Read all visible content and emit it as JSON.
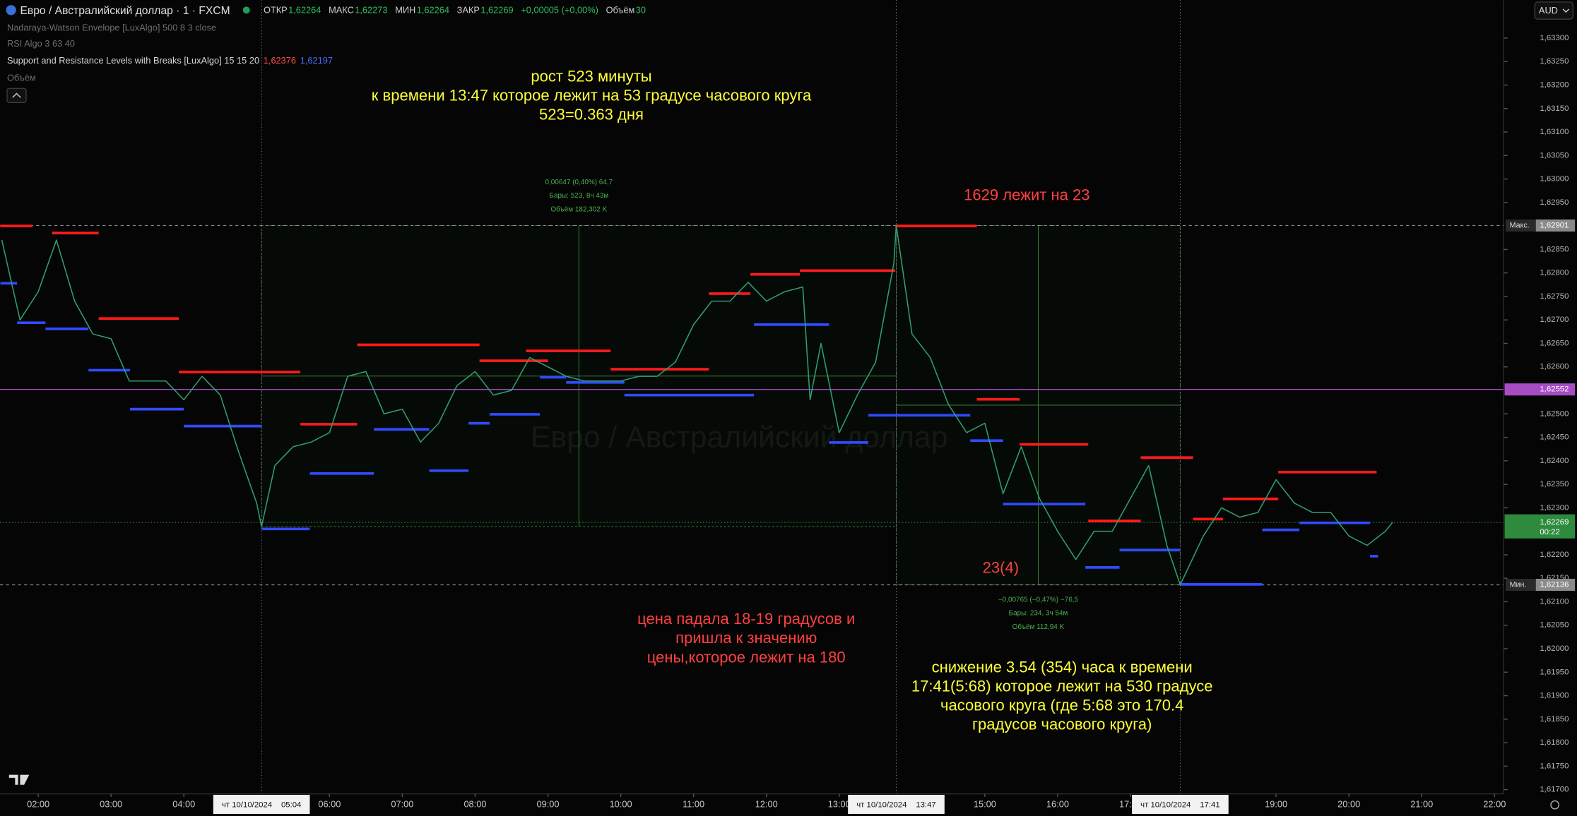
{
  "header": {
    "title": "Евро / Австралийский доллар · 1 · FXCM",
    "ohlc": [
      {
        "key": "ОТКР",
        "value": "1,62264"
      },
      {
        "key": "МАКС",
        "value": "1,62273"
      },
      {
        "key": "МИН",
        "value": "1,62264"
      },
      {
        "key": "ЗАКР",
        "value": "1,62269"
      }
    ],
    "change": "+0,00005 (+0,00%)",
    "volume_key": "Объём",
    "volume": "30",
    "currency": "AUD"
  },
  "indicators": [
    {
      "name": "Nadaraya-Watson Envelope [LuxAlgo] 500 8 3 close"
    },
    {
      "name": "RSI Algo 3 63 40"
    },
    {
      "name": "Support and Resistance Levels with Breaks [LuxAlgo] 15 15 20",
      "values": [
        "1,62376",
        "1,62197"
      ]
    },
    {
      "name": "Объём"
    }
  ],
  "watermark": "Евро / Австралийский доллар",
  "chart_data": {
    "type": "line",
    "color": "#2f9e6e",
    "x": [
      1.5,
      1.75,
      2,
      2.25,
      2.5,
      2.75,
      3,
      3.25,
      3.5,
      3.75,
      4,
      4.25,
      4.5,
      4.75,
      5,
      5.0667,
      5.25,
      5.5,
      5.75,
      6,
      6.25,
      6.5,
      6.75,
      7,
      7.25,
      7.5,
      7.75,
      8,
      8.25,
      8.5,
      8.75,
      9,
      9.25,
      9.5,
      9.75,
      10,
      10.25,
      10.5,
      10.75,
      11,
      11.25,
      11.5,
      11.75,
      12,
      12.25,
      12.5,
      12.6,
      12.75,
      13,
      13.25,
      13.5,
      13.75,
      13.7833,
      14,
      14.25,
      14.5,
      14.75,
      15,
      15.25,
      15.5,
      15.75,
      16,
      16.25,
      16.5,
      16.75,
      17,
      17.25,
      17.5,
      17.6833,
      18,
      18.25,
      18.5,
      18.75,
      19,
      19.25,
      19.5,
      19.75,
      20,
      20.25,
      20.5,
      20.6
    ],
    "values": [
      1.6287,
      1.627,
      1.6276,
      1.6287,
      1.6274,
      1.6267,
      1.6266,
      1.6257,
      1.6257,
      1.6257,
      1.6253,
      1.6258,
      1.6254,
      1.6242,
      1.6231,
      1.6226,
      1.6239,
      1.6243,
      1.6244,
      1.6246,
      1.6258,
      1.6259,
      1.625,
      1.6251,
      1.6244,
      1.6248,
      1.6256,
      1.6259,
      1.6254,
      1.6255,
      1.6262,
      1.626,
      1.6258,
      1.6257,
      1.6257,
      1.6257,
      1.6258,
      1.6258,
      1.6261,
      1.6269,
      1.6274,
      1.6274,
      1.6278,
      1.6274,
      1.6276,
      1.6277,
      1.6253,
      1.6265,
      1.6246,
      1.6254,
      1.6261,
      1.6282,
      1.62901,
      1.6267,
      1.6262,
      1.6252,
      1.6246,
      1.6248,
      1.6233,
      1.6243,
      1.6232,
      1.6225,
      1.6219,
      1.6225,
      1.6225,
      1.6232,
      1.6239,
      1.6222,
      1.62136,
      1.6224,
      1.623,
      1.6228,
      1.6229,
      1.6236,
      1.6231,
      1.6229,
      1.6229,
      1.6224,
      1.6222,
      1.6225,
      1.62269
    ],
    "xlim": [
      1.475,
      22.124
    ],
    "ylim": [
      1.61691,
      1.63381
    ],
    "xticks": [
      {
        "value": 2,
        "label": "02:00"
      },
      {
        "value": 3,
        "label": "03:00"
      },
      {
        "value": 4,
        "label": "04:00"
      },
      {
        "value": 6,
        "label": "06:00"
      },
      {
        "value": 7,
        "label": "07:00"
      },
      {
        "value": 8,
        "label": "08:00"
      },
      {
        "value": 9,
        "label": "09:00"
      },
      {
        "value": 10,
        "label": "10:00"
      },
      {
        "value": 11,
        "label": "11:00"
      },
      {
        "value": 12,
        "label": "12:00"
      },
      {
        "value": 13,
        "label": "13:00"
      },
      {
        "value": 15,
        "label": "15:00"
      },
      {
        "value": 16,
        "label": "16:00"
      },
      {
        "value": 17,
        "label": "17:00"
      },
      {
        "value": 19,
        "label": "19:00"
      },
      {
        "value": 20,
        "label": "20:00"
      },
      {
        "value": 21,
        "label": "21:00"
      },
      {
        "value": 22,
        "label": "22:00"
      }
    ],
    "yticks": [
      {
        "value": 1.633,
        "label": "1,63300"
      },
      {
        "value": 1.6325,
        "label": "1,63250"
      },
      {
        "value": 1.632,
        "label": "1,63200"
      },
      {
        "value": 1.6315,
        "label": "1,63150"
      },
      {
        "value": 1.631,
        "label": "1,63100"
      },
      {
        "value": 1.6305,
        "label": "1,63050"
      },
      {
        "value": 1.63,
        "label": "1,63000"
      },
      {
        "value": 1.6295,
        "label": "1,62950"
      },
      {
        "value": 1.6285,
        "label": "1,62850"
      },
      {
        "value": 1.628,
        "label": "1,62800"
      },
      {
        "value": 1.6275,
        "label": "1,62750"
      },
      {
        "value": 1.627,
        "label": "1,62700"
      },
      {
        "value": 1.6265,
        "label": "1,62650"
      },
      {
        "value": 1.626,
        "label": "1,62600"
      },
      {
        "value": 1.625,
        "label": "1,62500"
      },
      {
        "value": 1.6245,
        "label": "1,62450"
      },
      {
        "value": 1.624,
        "label": "1,62400"
      },
      {
        "value": 1.6235,
        "label": "1,62350"
      },
      {
        "value": 1.623,
        "label": "1,62300"
      },
      {
        "value": 1.622,
        "label": "1,62200"
      },
      {
        "value": 1.6215,
        "label": "1,62150"
      },
      {
        "value": 1.621,
        "label": "1,62100"
      },
      {
        "value": 1.6205,
        "label": "1,62050"
      },
      {
        "value": 1.62,
        "label": "1,62000"
      },
      {
        "value": 1.6195,
        "label": "1,61950"
      },
      {
        "value": 1.619,
        "label": "1,61900"
      },
      {
        "value": 1.6185,
        "label": "1,61850"
      },
      {
        "value": 1.618,
        "label": "1,61800"
      },
      {
        "value": 1.6175,
        "label": "1,61750"
      },
      {
        "value": 1.617,
        "label": "1,61700"
      }
    ],
    "resistance_color": "#ff1a1a",
    "support_color": "#2f4bff",
    "resistance_levels": [
      {
        "x": [
          1.48,
          1.92
        ],
        "value": 1.629
      },
      {
        "x": [
          2.19,
          2.83
        ],
        "value": 1.62885
      },
      {
        "x": [
          2.83,
          3.93
        ],
        "value": 1.62703
      },
      {
        "x": [
          3.93,
          5.6
        ],
        "value": 1.62589
      },
      {
        "x": [
          5.6,
          6.38
        ],
        "value": 1.62478
      },
      {
        "x": [
          6.38,
          8.06
        ],
        "value": 1.62647
      },
      {
        "x": [
          8.06,
          9.0
        ],
        "value": 1.62613
      },
      {
        "x": [
          8.7,
          9.86
        ],
        "value": 1.62634
      },
      {
        "x": [
          9.86,
          11.21
        ],
        "value": 1.62595
      },
      {
        "x": [
          11.21,
          11.78
        ],
        "value": 1.62756
      },
      {
        "x": [
          11.78,
          12.46
        ],
        "value": 1.62797
      },
      {
        "x": [
          12.46,
          13.77
        ],
        "value": 1.62805
      },
      {
        "x": [
          13.77,
          14.89
        ],
        "value": 1.629
      },
      {
        "x": [
          14.89,
          15.48
        ],
        "value": 1.62531
      },
      {
        "x": [
          15.48,
          16.42
        ],
        "value": 1.62435
      },
      {
        "x": [
          16.42,
          17.14
        ],
        "value": 1.62272
      },
      {
        "x": [
          17.14,
          17.86
        ],
        "value": 1.62407
      },
      {
        "x": [
          17.86,
          18.27
        ],
        "value": 1.62276
      },
      {
        "x": [
          18.27,
          19.03
        ],
        "value": 1.62319
      },
      {
        "x": [
          19.03,
          20.38
        ],
        "value": 1.62376
      }
    ],
    "support_levels": [
      {
        "x": [
          1.48,
          1.71
        ],
        "value": 1.62778
      },
      {
        "x": [
          1.71,
          2.1
        ],
        "value": 1.62694
      },
      {
        "x": [
          2.1,
          2.69
        ],
        "value": 1.62681
      },
      {
        "x": [
          2.69,
          3.26
        ],
        "value": 1.62593
      },
      {
        "x": [
          3.26,
          4.0
        ],
        "value": 1.6251
      },
      {
        "x": [
          4.0,
          5.07
        ],
        "value": 1.62474
      },
      {
        "x": [
          5.07,
          5.73
        ],
        "value": 1.62255
      },
      {
        "x": [
          5.73,
          6.61
        ],
        "value": 1.62373
      },
      {
        "x": [
          6.61,
          7.37
        ],
        "value": 1.62467
      },
      {
        "x": [
          7.37,
          7.91
        ],
        "value": 1.62379
      },
      {
        "x": [
          7.91,
          8.2
        ],
        "value": 1.6248
      },
      {
        "x": [
          8.2,
          8.89
        ],
        "value": 1.62499
      },
      {
        "x": [
          8.89,
          9.25
        ],
        "value": 1.62578
      },
      {
        "x": [
          9.25,
          10.05
        ],
        "value": 1.62567
      },
      {
        "x": [
          10.05,
          11.83
        ],
        "value": 1.6254
      },
      {
        "x": [
          11.83,
          12.86
        ],
        "value": 1.6269
      },
      {
        "x": [
          12.86,
          13.4
        ],
        "value": 1.62439
      },
      {
        "x": [
          13.4,
          14.8
        ],
        "value": 1.62497
      },
      {
        "x": [
          14.8,
          15.25
        ],
        "value": 1.62443
      },
      {
        "x": [
          15.25,
          16.38
        ],
        "value": 1.62308
      },
      {
        "x": [
          16.38,
          16.85
        ],
        "value": 1.62173
      },
      {
        "x": [
          16.85,
          17.68
        ],
        "value": 1.6221
      },
      {
        "x": [
          17.68,
          18.81
        ],
        "value": 1.62137
      },
      {
        "x": [
          18.81,
          19.32
        ],
        "value": 1.62253
      },
      {
        "x": [
          19.32,
          20.29
        ],
        "value": 1.62268
      },
      {
        "x": [
          20.29,
          20.4
        ],
        "value": 1.62197
      }
    ],
    "price_lines": [
      {
        "tag": "Макс.",
        "value": 1.62901,
        "label": "1,62901",
        "color": "#8a8a8a"
      },
      {
        "value": 1.62552,
        "label": "1,62552",
        "color": "#a64dc4"
      },
      {
        "value": 1.62269,
        "label": "1,62269",
        "countdown": "00:22",
        "color": "#2e8b3e"
      },
      {
        "tag": "Мин.",
        "value": 1.62136,
        "label": "1,62136",
        "color": "#8a8a8a"
      }
    ],
    "time_markers": [
      {
        "value": 5.0667,
        "date": "чт 10/10/2024",
        "label": "05:04"
      },
      {
        "value": 13.7833,
        "date": "чт 10/10/2024",
        "label": "13:47"
      },
      {
        "value": 17.6833,
        "date": "чт 10/10/2024",
        "label": "17:41"
      }
    ],
    "measurements": [
      {
        "x": [
          5.0667,
          13.7833
        ],
        "y": [
          1.6226,
          1.62901
        ],
        "lines": [
          "0,00647 (0,40%) 64,7",
          "Бары: 523, 8ч 43м",
          "Объём 182,302 K"
        ]
      },
      {
        "x": [
          13.7833,
          17.6833
        ],
        "y": [
          1.62901,
          1.62136
        ],
        "lines": [
          "−0,00765 (−0,47%) −76,5",
          "Бары: 234, 3ч 54м",
          "Объём 112,94 K"
        ]
      }
    ],
    "annotations": [
      {
        "color": "#ffff3a",
        "lines": [
          "рост 523 минуты",
          "к времени 13:47 которое лежит на 53 градусе часового круга",
          "523=0.363 дня"
        ]
      },
      {
        "color": "#ff4040",
        "lines": [
          "1629 лежит на 23"
        ]
      },
      {
        "color": "#ff4040",
        "lines": [
          "23(4)"
        ]
      },
      {
        "color": "#ff4040",
        "lines": [
          "цена падала 18-19 градусов и",
          "пришла к значению",
          "цены,которое лежит на 180"
        ]
      },
      {
        "color": "#ffff3a",
        "lines": [
          "снижение 3.54 (354) часа к времени",
          "17:41(5:68) которое лежит на 530 градусе",
          "часового круга (где 5:68 это 170.4",
          "градусов часового круга)"
        ]
      }
    ]
  }
}
